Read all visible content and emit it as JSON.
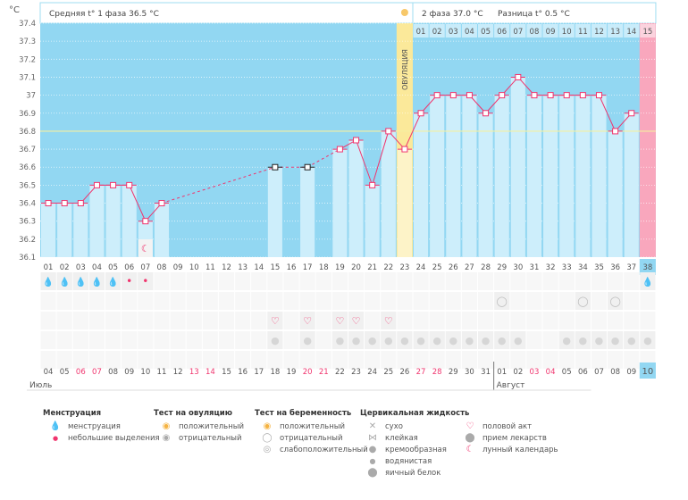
{
  "header": {
    "unit": "°C",
    "phase1_label": "Средняя t° 1 фаза",
    "phase1_value": "36.5 °C",
    "phase2_label": "2 фаза",
    "phase2_value": "37.0 °C",
    "diff_label": "Разница t°",
    "diff_value": "0.5 °C",
    "ovulation_label": "ОВУЛЯЦИЯ"
  },
  "chart_data": {
    "type": "line",
    "title": "",
    "xlabel": "",
    "ylabel": "°C",
    "ylim": [
      36.1,
      37.4
    ],
    "yticks": [
      "36.1",
      "36.2",
      "36.3",
      "36.4",
      "36.5",
      "36.6",
      "36.7",
      "36.8",
      "36.9",
      "37",
      "37.1",
      "37.2",
      "37.3",
      "37.4"
    ],
    "coverline": 36.8,
    "ovulation_day": 23,
    "highlight_day": 38,
    "cycle_days": [
      "01",
      "02",
      "03",
      "04",
      "05",
      "06",
      "07",
      "08",
      "09",
      "10",
      "11",
      "12",
      "13",
      "14",
      "15",
      "16",
      "17",
      "18",
      "19",
      "20",
      "21",
      "22",
      "23",
      "24",
      "25",
      "26",
      "27",
      "28",
      "29",
      "30",
      "31",
      "32",
      "33",
      "34",
      "35",
      "36",
      "37",
      "38"
    ],
    "phase2_days": [
      "01",
      "02",
      "03",
      "04",
      "05",
      "06",
      "07",
      "08",
      "09",
      "10",
      "11",
      "12",
      "13",
      "14",
      "15"
    ],
    "temperatures": [
      36.4,
      36.4,
      36.4,
      36.5,
      36.5,
      36.5,
      36.3,
      36.4,
      null,
      null,
      null,
      null,
      null,
      null,
      36.6,
      null,
      36.6,
      null,
      36.7,
      36.75,
      36.5,
      36.8,
      36.7,
      36.9,
      37.0,
      37.0,
      37.0,
      36.9,
      37.0,
      37.1,
      37.0,
      37.0,
      37.0,
      37.0,
      37.0,
      36.8,
      36.9
    ],
    "excluded_days": [
      15,
      17
    ],
    "dates": [
      "04",
      "05",
      "06",
      "07",
      "08",
      "09",
      "10",
      "11",
      "12",
      "13",
      "14",
      "15",
      "16",
      "17",
      "18",
      "19",
      "20",
      "21",
      "22",
      "23",
      "24",
      "25",
      "26",
      "27",
      "28",
      "29",
      "30",
      "31",
      "01",
      "02",
      "03",
      "04",
      "05",
      "06",
      "07",
      "08",
      "09",
      "10"
    ],
    "weekend_dates_idx": [
      2,
      3,
      9,
      10,
      16,
      17,
      23,
      24,
      30,
      31
    ],
    "months": [
      {
        "label": "Июль",
        "start": 0
      },
      {
        "label": "Август",
        "start": 28
      }
    ],
    "markers": {
      "menstruation": [
        1,
        2,
        3,
        4,
        5,
        38
      ],
      "spotting": [
        6,
        7
      ],
      "moon": [
        7
      ],
      "pregnancy_test_negative": [
        29,
        34,
        36
      ],
      "intercourse": [
        15,
        17,
        19,
        20,
        22
      ],
      "medication": [
        15,
        17,
        19,
        20,
        21,
        22,
        23,
        24,
        25,
        26,
        27,
        28,
        29,
        30,
        33,
        34,
        35,
        36,
        37,
        38
      ]
    }
  },
  "legend": {
    "menstruation": {
      "title": "Менструация",
      "items": [
        "менструация",
        "небольшие выделения"
      ]
    },
    "ovulation_test": {
      "title": "Тест на овуляцию",
      "items": [
        "положительный",
        "отрицательный"
      ]
    },
    "pregnancy_test": {
      "title": "Тест на беременность",
      "items": [
        "положительный",
        "отрицательный",
        "слабоположительный"
      ]
    },
    "cervical": {
      "title": "Цервикальная жидкость",
      "items": [
        "сухо",
        "клейкая",
        "кремообразная",
        "водянистая",
        "яичный белок"
      ]
    },
    "other": {
      "items": [
        "половой акт",
        "прием лекарств",
        "лунный календарь"
      ]
    }
  },
  "colors": {
    "sky": "#92d7f2",
    "bar": "#cdeefb",
    "line": "#f0356e",
    "ovulation": "#fbe99a",
    "coverline": "#f5f0a0",
    "highlight": "#f9a7bd",
    "cell": "#f0f0f0"
  }
}
